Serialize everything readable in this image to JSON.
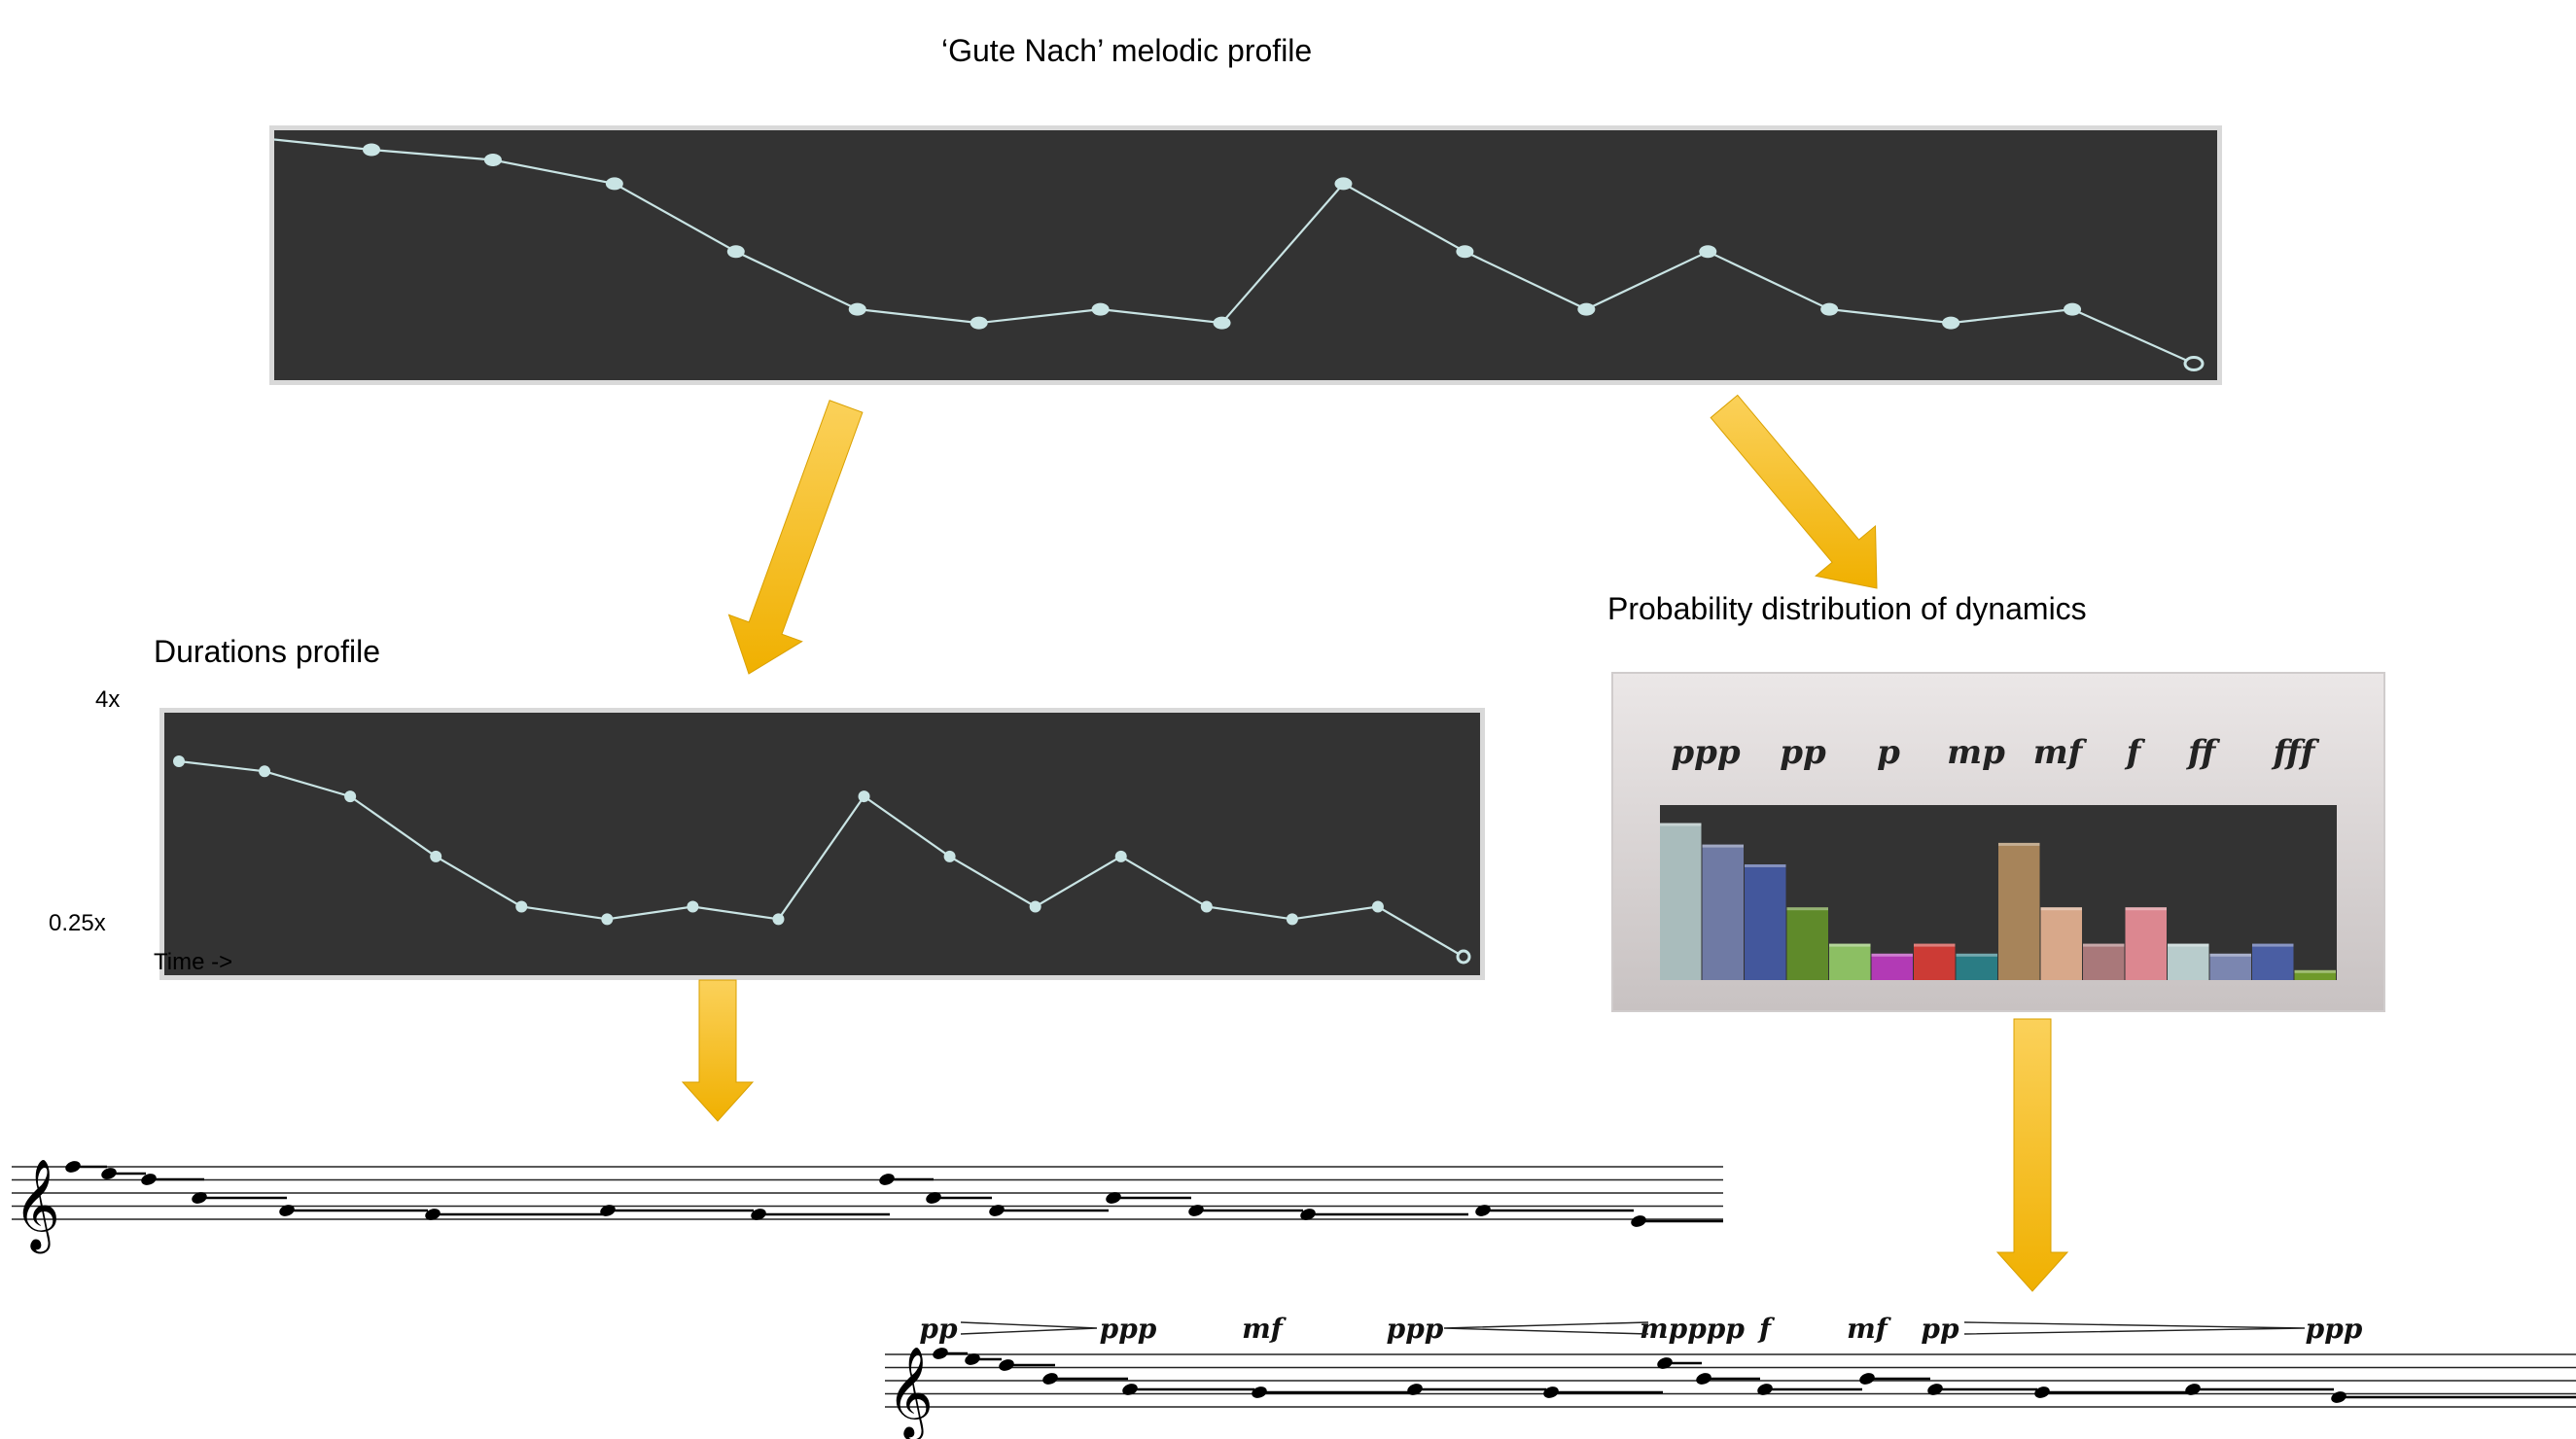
{
  "titles": {
    "melodic": "‘Gute Nach’ melodic profile",
    "durations": "Durations profile",
    "dynamics": "Probability distribution of dynamics"
  },
  "durations_axis": {
    "top": "4x",
    "bottom": "0.25x",
    "time": "Time ->"
  },
  "dynamics_legend": [
    "ppp",
    "pp",
    "p",
    "mp",
    "mf",
    "f",
    "ff",
    "fff"
  ],
  "score_dynamics": [
    {
      "text": "pp"
    },
    {
      "text": "ppp"
    },
    {
      "text": "mf"
    },
    {
      "text": "ppp"
    },
    {
      "text": "mpppp"
    },
    {
      "text": "f"
    },
    {
      "text": "mf"
    },
    {
      "text": "pp"
    },
    {
      "text": "ppp"
    }
  ],
  "colors": {
    "panel": "#333333",
    "line": "#c9e4e4",
    "arrow": "#f3b500"
  },
  "melodic_profile": {
    "values": [
      10,
      9.7,
      9,
      7,
      5.3,
      4.9,
      5.3,
      4.9,
      9,
      7,
      5.3,
      7,
      5.3,
      4.9,
      5.3,
      3.7
    ]
  },
  "durations_profile": {
    "values": [
      10,
      9.6,
      8.6,
      6.2,
      4.2,
      3.7,
      4.2,
      3.7,
      8.6,
      6.2,
      4.2,
      6.2,
      4.2,
      3.7,
      4.2,
      2.2
    ]
  },
  "dynamics_distribution": {
    "values": [
      0.95,
      0.82,
      0.7,
      0.44,
      0.22,
      0.16,
      0.22,
      0.16,
      0.83,
      0.44,
      0.22,
      0.44,
      0.22,
      0.16,
      0.22,
      0.06
    ],
    "colors": [
      "#a9bcbc",
      "#6f7aa4",
      "#43579c",
      "#5f8a2a",
      "#8cbf63",
      "#b23ab5",
      "#cc3b35",
      "#2a7c84",
      "#a7845a",
      "#d8a88a",
      "#a9787a",
      "#dc8790",
      "#b8cccc",
      "#7b86b0",
      "#4a5ea3",
      "#6f9a2a"
    ]
  }
}
